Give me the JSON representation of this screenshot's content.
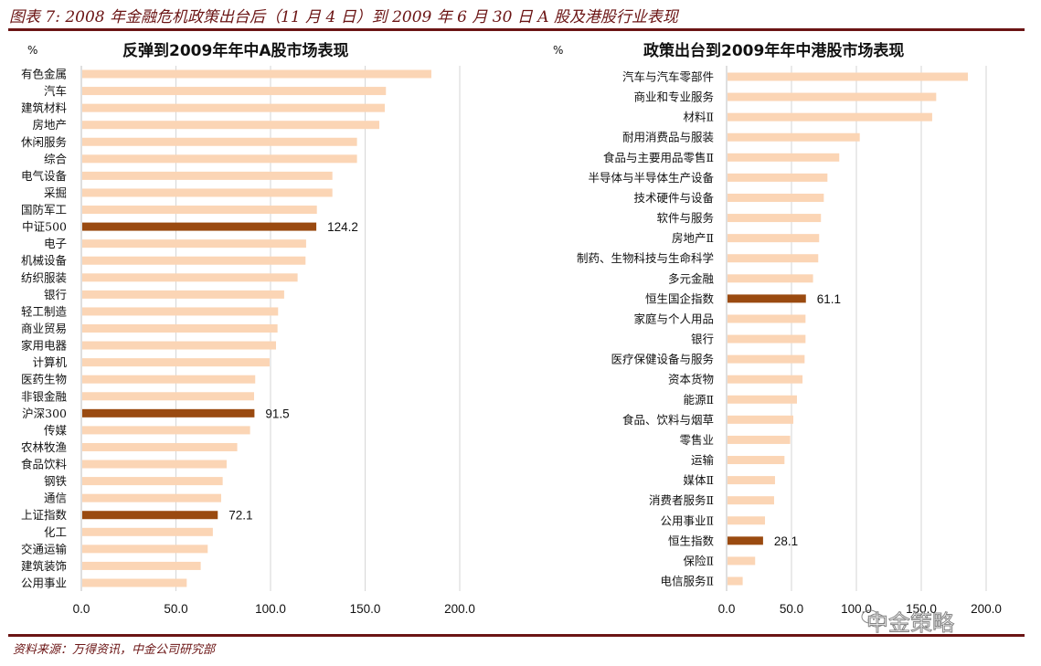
{
  "figure_title": "图表 7: 2008 年金融危机政策出台后（11 月 4 日）到 2009 年 6 月 30 日 A 股及港股行业表现",
  "source": "资料来源：万得资讯，中金公司研究部",
  "watermark": "中金策略",
  "colors": {
    "normal_bar": "#fbd5b5",
    "highlight_bar": "#9a4a10",
    "gridline": "#d6d6d6",
    "title_rule": "#6b1414"
  },
  "chart_data": [
    {
      "type": "bar",
      "orientation": "horizontal",
      "title": "反弹到2009年年中A股市场表现",
      "unit_label": "%",
      "xlabel": "",
      "ylabel": "",
      "xlim": [
        0,
        200
      ],
      "xticks": [
        "0.0",
        "50.0",
        "100.0",
        "150.0",
        "200.0"
      ],
      "grid": true,
      "legend": "none",
      "categories": [
        "有色金属",
        "汽车",
        "建筑材料",
        "房地产",
        "休闲服务",
        "综合",
        "电气设备",
        "采掘",
        "国防军工",
        "中证500",
        "电子",
        "机械设备",
        "纺织服装",
        "银行",
        "轻工制造",
        "商业贸易",
        "家用电器",
        "计算机",
        "医药生物",
        "非银金融",
        "沪深300",
        "传媒",
        "农林牧渔",
        "食品饮料",
        "钢铁",
        "通信",
        "上证指数",
        "化工",
        "交通运输",
        "建筑装饰",
        "公用事业"
      ],
      "values": [
        185.0,
        161.0,
        160.4,
        157.5,
        145.7,
        145.7,
        132.7,
        132.7,
        124.5,
        124.2,
        118.8,
        118.5,
        114.3,
        107.2,
        104.0,
        103.7,
        102.9,
        99.5,
        91.9,
        91.3,
        91.5,
        89.2,
        82.4,
        76.8,
        74.7,
        73.9,
        72.1,
        69.5,
        66.8,
        63.1,
        55.7
      ],
      "highlighted": [
        "中证500",
        "沪深300",
        "上证指数"
      ],
      "data_labels": {
        "中证500": "124.2",
        "沪深300": "91.5",
        "上证指数": "72.1"
      }
    },
    {
      "type": "bar",
      "orientation": "horizontal",
      "title": "政策出台到2009年年中港股市场表现",
      "unit_label": "%",
      "xlabel": "",
      "ylabel": "",
      "xlim": [
        0,
        200
      ],
      "xticks": [
        "0.0",
        "50.0",
        "100.0",
        "150.0",
        "200.0"
      ],
      "grid": true,
      "legend": "none",
      "categories": [
        "汽车与汽车零部件",
        "商业和专业服务",
        "材料Ⅱ",
        "耐用消费品与服装",
        "食品与主要用品零售Ⅱ",
        "半导体与半导体生产设备",
        "技术硬件与设备",
        "软件与服务",
        "房地产Ⅱ",
        "制药、生物科技与生命科学",
        "多元金融",
        "恒生国企指数",
        "家庭与个人用品",
        "银行",
        "医疗保健设备与服务",
        "资本货物",
        "能源Ⅱ",
        "食品、饮料与烟草",
        "零售业",
        "运输",
        "媒体Ⅱ",
        "消费者服务Ⅱ",
        "公用事业Ⅱ",
        "恒生指数",
        "保险Ⅱ",
        "电信服务Ⅱ"
      ],
      "values": [
        185.9,
        161.5,
        158.4,
        102.6,
        86.8,
        77.7,
        74.9,
        72.7,
        71.3,
        70.6,
        66.6,
        61.1,
        60.8,
        60.8,
        60.1,
        58.5,
        54.2,
        51.4,
        49.0,
        44.6,
        37.3,
        36.6,
        29.6,
        28.1,
        22.0,
        12.4
      ],
      "highlighted": [
        "恒生国企指数",
        "恒生指数"
      ],
      "data_labels": {
        "恒生国企指数": "61.1",
        "恒生指数": "28.1"
      }
    }
  ]
}
